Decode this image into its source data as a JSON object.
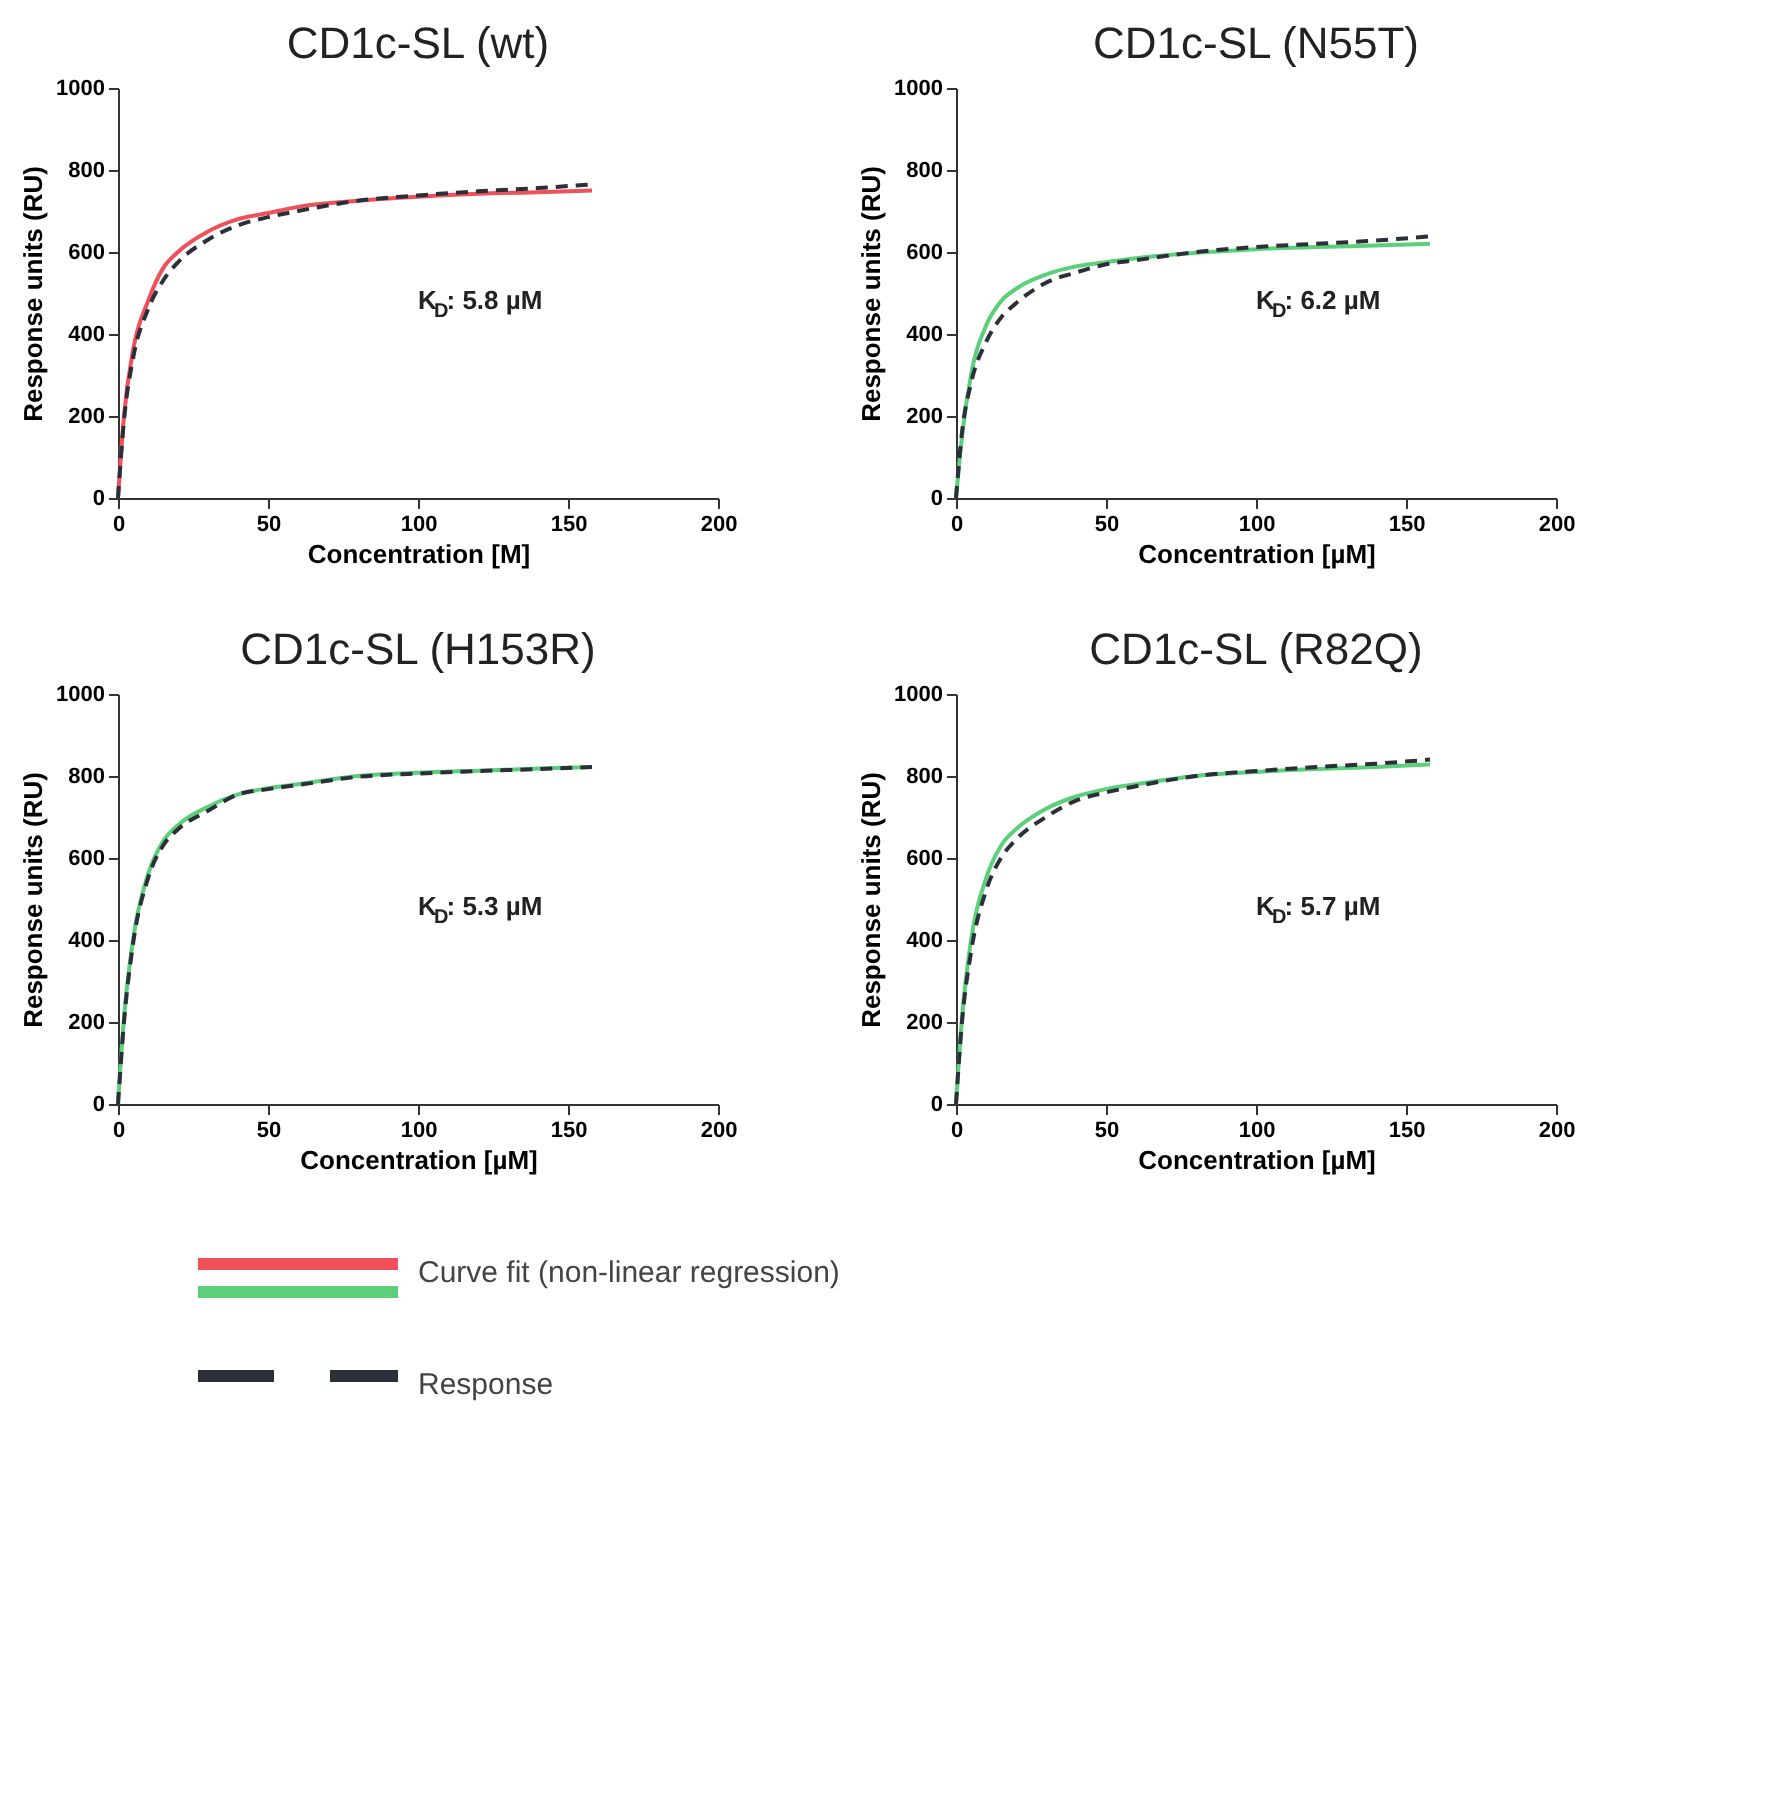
{
  "chart_data": [
    {
      "type": "line",
      "title": "CD1c-SL (wt)",
      "xlabel": "Concentration [M]",
      "ylabel": "Response units (RU)",
      "xlim": [
        0,
        200
      ],
      "xticks": [
        0,
        50,
        100,
        150,
        200
      ],
      "ylim": [
        0,
        1000
      ],
      "yticks": [
        0,
        200,
        400,
        600,
        800,
        1000
      ],
      "grid": false,
      "legend": "bottom",
      "annotations": [
        "K$_{D}$: 5.8 µM"
      ],
      "x": [
        0,
        2,
        5,
        10,
        15,
        20,
        30,
        40,
        50,
        60,
        80,
        100,
        120,
        140,
        158
      ],
      "series": [
        {
          "name": "Curve fit (non-linear regression)",
          "color": "#f0505a",
          "line_style": "solid",
          "values": [
            0,
            200,
            360,
            480,
            560,
            600,
            650,
            680,
            695,
            710,
            725,
            735,
            742,
            746,
            750
          ]
        },
        {
          "name": "Response",
          "color": "#2b2f3a",
          "line_style": "dashed",
          "values": [
            0,
            190,
            340,
            460,
            530,
            575,
            630,
            665,
            685,
            700,
            725,
            738,
            748,
            756,
            765
          ]
        }
      ]
    },
    {
      "type": "line",
      "title": "CD1c-SL (N55T)",
      "xlabel": "Concentration [µM]",
      "ylabel": "Response units (RU)",
      "xlim": [
        0,
        200
      ],
      "xticks": [
        0,
        50,
        100,
        150,
        200
      ],
      "ylim": [
        0,
        1000
      ],
      "yticks": [
        0,
        200,
        400,
        600,
        800,
        1000
      ],
      "grid": false,
      "annotations": [
        "K$_{D}$: 6.2 µM"
      ],
      "x": [
        0,
        2,
        5,
        10,
        15,
        20,
        30,
        40,
        50,
        60,
        80,
        100,
        120,
        140,
        158
      ],
      "series": [
        {
          "color": "#5ccf7a",
          "line_style": "solid",
          "values": [
            0,
            150,
            300,
            420,
            480,
            510,
            545,
            565,
            575,
            585,
            598,
            607,
            612,
            616,
            620
          ]
        },
        {
          "color": "#2b2f3a",
          "line_style": "dashed",
          "values": [
            0,
            160,
            280,
            380,
            440,
            475,
            525,
            550,
            570,
            580,
            600,
            612,
            620,
            628,
            638
          ]
        }
      ]
    },
    {
      "type": "line",
      "title": "CD1c-SL (H153R)",
      "xlabel": "Concentration [µM]",
      "ylabel": "Response units (RU)",
      "xlim": [
        0,
        200
      ],
      "xticks": [
        0,
        50,
        100,
        150,
        200
      ],
      "ylim": [
        0,
        1000
      ],
      "yticks": [
        0,
        200,
        400,
        600,
        800,
        1000
      ],
      "grid": false,
      "annotations": [
        "K$_{D}$: 5.3 µM"
      ],
      "x": [
        0,
        2,
        5,
        10,
        15,
        20,
        30,
        40,
        50,
        60,
        80,
        100,
        120,
        140,
        158
      ],
      "series": [
        {
          "color": "#5ccf7a",
          "line_style": "solid",
          "values": [
            0,
            210,
            400,
            560,
            640,
            680,
            725,
            755,
            770,
            780,
            800,
            808,
            813,
            818,
            822
          ]
        },
        {
          "color": "#2b2f3a",
          "line_style": "dashed",
          "values": [
            0,
            200,
            390,
            550,
            630,
            670,
            715,
            755,
            768,
            778,
            798,
            806,
            812,
            817,
            822
          ]
        }
      ]
    },
    {
      "type": "line",
      "title": "CD1c-SL (R82Q)",
      "xlabel": "Concentration [µM]",
      "ylabel": "Response units (RU)",
      "xlim": [
        0,
        200
      ],
      "xticks": [
        0,
        50,
        100,
        150,
        200
      ],
      "ylim": [
        0,
        1000
      ],
      "yticks": [
        0,
        200,
        400,
        600,
        800,
        1000
      ],
      "grid": false,
      "annotations": [
        "K$_{D}$: 5.7 µM"
      ],
      "x": [
        0,
        2,
        5,
        10,
        15,
        20,
        30,
        40,
        50,
        60,
        80,
        100,
        120,
        140,
        158
      ],
      "series": [
        {
          "color": "#5ccf7a",
          "line_style": "solid",
          "values": [
            0,
            210,
            400,
            550,
            630,
            670,
            720,
            750,
            768,
            780,
            800,
            810,
            817,
            822,
            828
          ]
        },
        {
          "color": "#2b2f3a",
          "line_style": "dashed",
          "values": [
            0,
            200,
            370,
            520,
            600,
            645,
            700,
            740,
            760,
            775,
            800,
            812,
            822,
            830,
            840
          ]
        }
      ]
    }
  ]
}
